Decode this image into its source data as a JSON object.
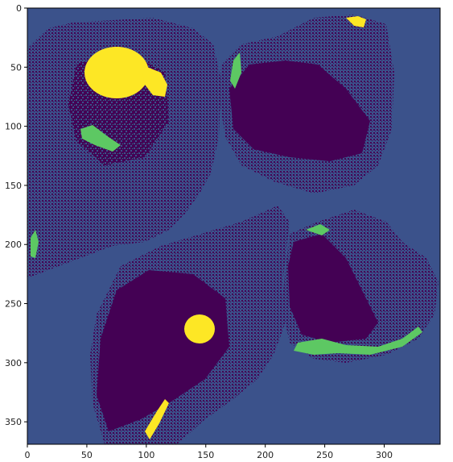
{
  "figure": {
    "colormap": [
      "#440154",
      "#3b528b",
      "#21908d",
      "#5dc863",
      "#fde725"
    ],
    "background_color": "#3b528b",
    "tissue_color": "#440154",
    "highlight_color": "#fde725",
    "x_axis": {
      "ticks": [
        0,
        50,
        100,
        150,
        200,
        250,
        300
      ],
      "labels": [
        "0",
        "50",
        "100",
        "150",
        "200",
        "250",
        "300"
      ],
      "range": [
        0,
        347
      ]
    },
    "y_axis": {
      "ticks": [
        0,
        50,
        100,
        150,
        200,
        250,
        300,
        350
      ],
      "labels": [
        "0",
        "50",
        "100",
        "150",
        "200",
        "250",
        "300",
        "350"
      ],
      "range": [
        0,
        369
      ]
    }
  }
}
